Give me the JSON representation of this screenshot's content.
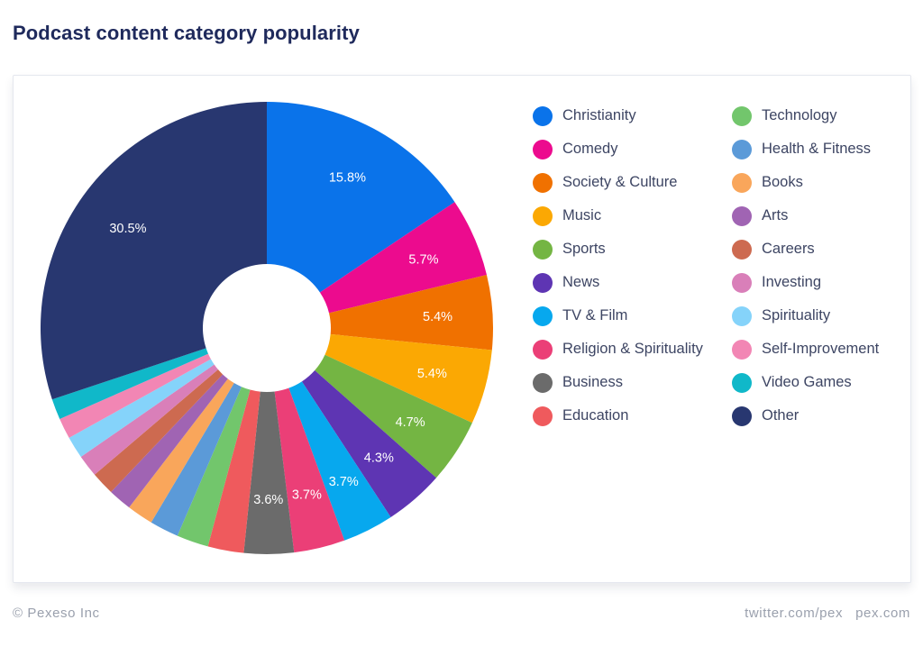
{
  "title": "Podcast content category popularity",
  "footer": {
    "copyright": "© Pexeso Inc",
    "twitter": "twitter.com/pex",
    "site": "pex.com"
  },
  "chart_data": {
    "type": "pie",
    "donut": true,
    "title": "Podcast content category popularity",
    "legend_placement": "right",
    "series": [
      {
        "name": "Christianity",
        "value": 15.8,
        "label": "15.8%",
        "color": "#0a73ea"
      },
      {
        "name": "Comedy",
        "value": 5.7,
        "label": "5.7%",
        "color": "#ec0b8e"
      },
      {
        "name": "Society & Culture",
        "value": 5.4,
        "label": "5.4%",
        "color": "#f07100"
      },
      {
        "name": "Music",
        "value": 5.4,
        "label": "5.4%",
        "color": "#fba803"
      },
      {
        "name": "Sports",
        "value": 4.7,
        "label": "4.7%",
        "color": "#74b543"
      },
      {
        "name": "News",
        "value": 4.3,
        "label": "4.3%",
        "color": "#5e35b3"
      },
      {
        "name": "TV & Film",
        "value": 3.7,
        "label": "3.7%",
        "color": "#07a8ee"
      },
      {
        "name": "Religion & Spirituality",
        "value": 3.7,
        "label": "3.7%",
        "color": "#eb3f77"
      },
      {
        "name": "Business",
        "value": 3.6,
        "label": "3.6%",
        "color": "#6b6b6b"
      },
      {
        "name": "Education",
        "value": 2.6,
        "label": "",
        "color": "#ef5a5d"
      },
      {
        "name": "Technology",
        "value": 2.3,
        "label": "",
        "color": "#72c66c"
      },
      {
        "name": "Health & Fitness",
        "value": 2.1,
        "label": "",
        "color": "#5b9ad8"
      },
      {
        "name": "Books",
        "value": 1.9,
        "label": "",
        "color": "#f9a65b"
      },
      {
        "name": "Arts",
        "value": 1.7,
        "label": "",
        "color": "#a064b3"
      },
      {
        "name": "Careers",
        "value": 1.7,
        "label": "",
        "color": "#cd6a50"
      },
      {
        "name": "Investing",
        "value": 1.6,
        "label": "",
        "color": "#d97fb9"
      },
      {
        "name": "Spirituality",
        "value": 1.6,
        "label": "",
        "color": "#85d3fa"
      },
      {
        "name": "Self-Improvement",
        "value": 1.5,
        "label": "",
        "color": "#f286b4"
      },
      {
        "name": "Video Games",
        "value": 1.5,
        "label": "",
        "color": "#10b8c9"
      },
      {
        "name": "Other",
        "value": 30.5,
        "label": "30.5%",
        "color": "#283770"
      }
    ]
  }
}
